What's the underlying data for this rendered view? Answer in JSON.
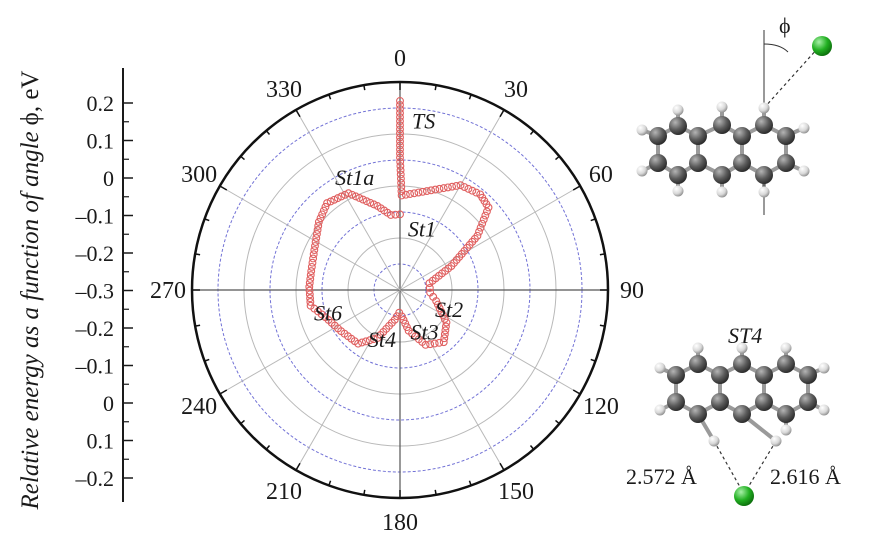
{
  "chart_data": {
    "type": "polar-scatter",
    "title": "",
    "ylabel": {
      "italic": "Relative energy as a function of angle",
      "symbol": "ϕ",
      "unit": ", eV"
    },
    "radial_axis_ticks": [
      "0.2",
      "0.1",
      "0",
      "–0.1",
      "–0.2",
      "–0.3",
      "–0.2",
      "–0.1",
      "0",
      "0.1",
      "–0.2"
    ],
    "radial_range": [
      -0.3,
      0.25
    ],
    "angle_ticks": [
      "0",
      "30",
      "60",
      "90",
      "120",
      "150",
      "180",
      "210",
      "240",
      "270",
      "300",
      "330"
    ],
    "angle_unit": "degrees",
    "series": [
      {
        "color": "#e06060",
        "marker": "open-circle",
        "points": [
          {
            "angle": 0,
            "energy": 0.2
          },
          {
            "angle": 0,
            "energy": 0.05
          },
          {
            "angle": 1,
            "energy": -0.05
          },
          {
            "angle": 30,
            "energy": 0.02
          },
          {
            "angle": 40,
            "energy": 0.03
          },
          {
            "angle": 47,
            "energy": 0.02
          },
          {
            "angle": 55,
            "energy": -0.05
          },
          {
            "angle": 65,
            "energy": -0.15
          },
          {
            "angle": 77,
            "energy": -0.22
          },
          {
            "angle": 95,
            "energy": -0.22
          },
          {
            "angle": 107,
            "energy": -0.2
          },
          {
            "angle": 125,
            "energy": -0.15
          },
          {
            "angle": 140,
            "energy": -0.12
          },
          {
            "angle": 155,
            "energy": -0.14
          },
          {
            "angle": 168,
            "energy": -0.19
          },
          {
            "angle": 176,
            "energy": -0.23
          },
          {
            "angle": 182,
            "energy": -0.24
          },
          {
            "angle": 190,
            "energy": -0.22
          },
          {
            "angle": 205,
            "energy": -0.16
          },
          {
            "angle": 218,
            "energy": -0.12
          },
          {
            "angle": 235,
            "energy": -0.11
          },
          {
            "angle": 250,
            "energy": -0.09
          },
          {
            "angle": 260,
            "energy": -0.06
          },
          {
            "angle": 272,
            "energy": -0.06
          },
          {
            "angle": 282,
            "energy": -0.06
          },
          {
            "angle": 295,
            "energy": -0.05
          },
          {
            "angle": 310,
            "energy": -0.02
          },
          {
            "angle": 320,
            "energy": 0.0
          },
          {
            "angle": 332,
            "energy": -0.01
          },
          {
            "angle": 345,
            "energy": -0.07
          },
          {
            "angle": 353,
            "energy": -0.1
          },
          {
            "angle": 360,
            "energy": -0.1
          }
        ]
      }
    ],
    "state_labels": [
      {
        "label": "TS",
        "angle": 8,
        "energy": 0.15
      },
      {
        "label": "St1a",
        "angle": 338,
        "energy": 0.02
      },
      {
        "label": "St1",
        "angle": 20,
        "energy": -0.13
      },
      {
        "label": "St2",
        "angle": 112,
        "energy": -0.16
      },
      {
        "label": "St3",
        "angle": 150,
        "energy": -0.17
      },
      {
        "label": "St4",
        "angle": 200,
        "energy": -0.16
      },
      {
        "label": "St6",
        "angle": 252,
        "energy": -0.1
      }
    ],
    "grid": true,
    "colors": {
      "grid_light": "#b9b9b9",
      "grid_blue": "#7272d6",
      "circle_points": "#e06060"
    }
  },
  "molecules": {
    "top": {
      "angle_symbol": "ϕ"
    },
    "bottom": {
      "label": "ST4",
      "distance_left": "2.572 Å",
      "distance_right": "2.616 Å"
    },
    "colors": {
      "carbon": "#555555",
      "hydrogen": "#d9d9d9",
      "chlorine": "#22b022"
    }
  }
}
